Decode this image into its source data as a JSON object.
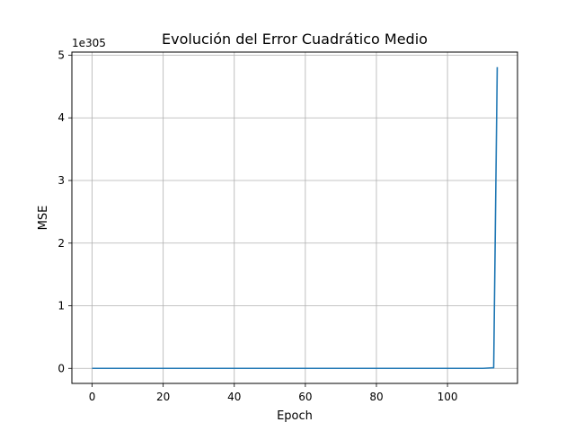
{
  "chart_data": {
    "type": "line",
    "title": "Evolución del Error Cuadrático Medio",
    "xlabel": "Epoch",
    "ylabel": "MSE",
    "offset_label": "1e305",
    "xlim": [
      -5.7,
      119.7
    ],
    "ylim": [
      -0.24,
      5.05
    ],
    "x_ticks": [
      0,
      20,
      40,
      60,
      80,
      100
    ],
    "x_tick_labels": [
      "0",
      "20",
      "40",
      "60",
      "80",
      "100"
    ],
    "y_ticks": [
      0,
      1,
      2,
      3,
      4,
      5
    ],
    "y_tick_labels": [
      "0",
      "1",
      "2",
      "3",
      "4",
      "5"
    ],
    "grid": true,
    "series": [
      {
        "color": "#1f77b4",
        "x": [
          0,
          10,
          20,
          30,
          40,
          50,
          60,
          70,
          80,
          90,
          100,
          110,
          113,
          114
        ],
        "y": [
          0,
          0,
          0,
          0,
          0,
          0,
          0,
          0,
          0,
          0,
          0,
          0,
          0.01,
          4.81
        ]
      }
    ]
  }
}
